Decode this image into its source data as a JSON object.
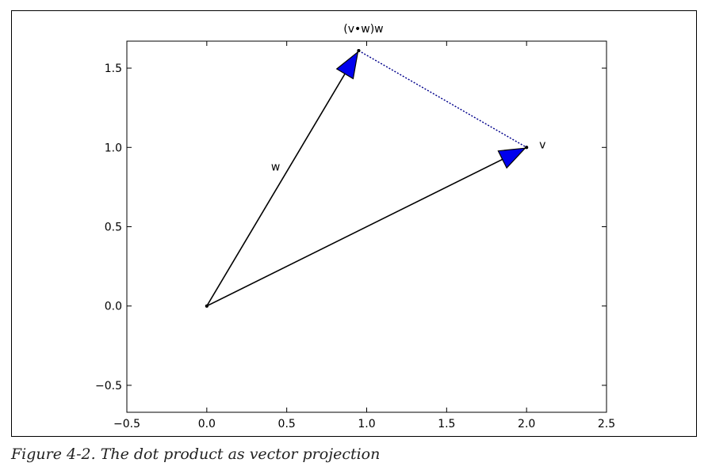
{
  "chart_data": {
    "type": "line",
    "title": "",
    "xlabel": "",
    "ylabel": "",
    "xlim": [
      -0.5,
      2.5
    ],
    "ylim": [
      -0.67,
      1.67
    ],
    "xticks": [
      -0.5,
      0.0,
      0.5,
      1.0,
      1.5,
      2.0,
      2.5
    ],
    "yticks": [
      -0.5,
      0.0,
      0.5,
      1.0,
      1.5
    ],
    "xtick_labels": [
      "−0.5",
      "0.0",
      "0.5",
      "1.0",
      "1.5",
      "2.0",
      "2.5"
    ],
    "ytick_labels": [
      "−0.5",
      "0.0",
      "0.5",
      "1.0",
      "1.5"
    ],
    "grid": false,
    "series": [
      {
        "label": "v",
        "x": [
          0,
          2
        ],
        "y": [
          0,
          1
        ],
        "style": "solid-arrow"
      },
      {
        "label": "w",
        "x": [
          0,
          0.95
        ],
        "y": [
          0,
          1.61
        ],
        "style": "solid-arrow"
      },
      {
        "label": "(v•w)w",
        "x": [
          0.95,
          2
        ],
        "y": [
          1.61,
          1
        ],
        "style": "dotted-projection"
      }
    ],
    "annotations": [
      {
        "text": "v",
        "x": 2.1,
        "y": 1.02
      },
      {
        "text": "w",
        "x": 0.43,
        "y": 0.88
      },
      {
        "text": "(v•w)w",
        "x": 0.98,
        "y": 1.75
      }
    ],
    "colors": {
      "arrowhead": "#0000ee",
      "projection": "#00008b",
      "vector": "#000000"
    }
  },
  "caption": "Figure 4-2. The dot product as vector projection"
}
